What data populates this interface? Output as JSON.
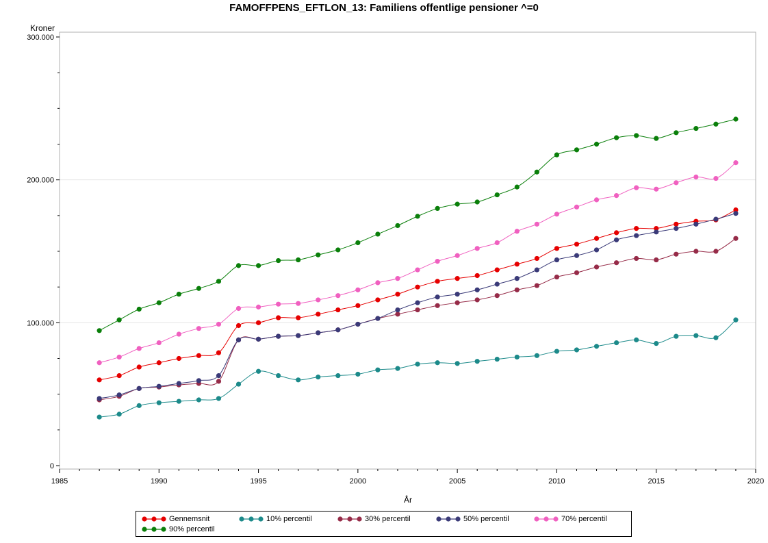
{
  "chart_data": {
    "type": "line",
    "title": "FAMOFFPENS_EFTLON_13: Familiens offentlige pensioner ^=0",
    "xlabel": "År",
    "ylabel": "Kroner",
    "xlim": [
      1985,
      2020
    ],
    "ylim": [
      0,
      300000
    ],
    "x_ticks": [
      1985,
      1990,
      1995,
      2000,
      2005,
      2010,
      2015,
      2020
    ],
    "x_tick_labels": [
      "1985",
      "1990",
      "1995",
      "2000",
      "2005",
      "2010",
      "2015",
      "2020"
    ],
    "y_ticks": [
      0,
      100000,
      200000,
      300000
    ],
    "y_tick_labels": [
      "0",
      "100.000",
      "200.000",
      "300.000"
    ],
    "grid": "horizontal",
    "legend_position": "bottom",
    "x": [
      1987,
      1988,
      1989,
      1990,
      1991,
      1992,
      1993,
      1994,
      1995,
      1996,
      1997,
      1998,
      1999,
      2000,
      2001,
      2002,
      2003,
      2004,
      2005,
      2006,
      2007,
      2008,
      2009,
      2010,
      2011,
      2012,
      2013,
      2014,
      2015,
      2016,
      2017,
      2018,
      2019
    ],
    "series": [
      {
        "name": "Gennemsnit",
        "color": "#e60000",
        "values": [
          60000,
          63000,
          69000,
          72000,
          75000,
          77000,
          79000,
          98000,
          100000,
          103500,
          103500,
          106000,
          109000,
          112000,
          116000,
          120000,
          125000,
          129000,
          131000,
          133000,
          137000,
          141000,
          145000,
          152000,
          155000,
          159000,
          163000,
          166000,
          166000,
          169000,
          171000,
          172000,
          179000
        ]
      },
      {
        "name": "10% percentil",
        "color": "#1c8a8a",
        "values": [
          34000,
          36000,
          42000,
          44000,
          45000,
          46000,
          47000,
          57000,
          66000,
          63000,
          60000,
          62000,
          63000,
          64000,
          67000,
          68000,
          71000,
          72000,
          71500,
          73000,
          74500,
          76000,
          77000,
          80000,
          81000,
          83500,
          86000,
          88000,
          85500,
          90500,
          91000,
          89500,
          102000
        ]
      },
      {
        "name": "30% percentil",
        "color": "#962b48",
        "values": [
          46000,
          48500,
          54000,
          55000,
          56500,
          57500,
          59000,
          88000,
          88500,
          90500,
          91000,
          93000,
          95000,
          99000,
          103000,
          106000,
          109000,
          112000,
          114000,
          116000,
          119000,
          123000,
          126000,
          132000,
          135000,
          139000,
          142000,
          145000,
          144000,
          148000,
          150000,
          150000,
          159000
        ]
      },
      {
        "name": "50% percentil",
        "color": "#3a3a78",
        "values": [
          47000,
          49500,
          54000,
          55500,
          57500,
          59500,
          63000,
          88000,
          88500,
          90500,
          91000,
          93000,
          95000,
          99000,
          103000,
          109000,
          114000,
          118000,
          120000,
          123000,
          127000,
          131000,
          137000,
          144000,
          147000,
          151000,
          158000,
          161000,
          163500,
          166000,
          169000,
          172500,
          176500
        ]
      },
      {
        "name": "70% percentil",
        "color": "#f060c0",
        "values": [
          72000,
          76000,
          82000,
          86000,
          92000,
          96000,
          99000,
          110000,
          111000,
          113000,
          113500,
          116000,
          119000,
          123000,
          128000,
          131000,
          137000,
          143000,
          147000,
          152000,
          156000,
          164000,
          169000,
          176000,
          181000,
          186000,
          189000,
          194500,
          193500,
          198000,
          202000,
          201000,
          212000
        ]
      },
      {
        "name": "90% percentil",
        "color": "#0a7f0a",
        "values": [
          94500,
          102000,
          109500,
          114000,
          120000,
          124000,
          129000,
          140000,
          140000,
          143500,
          144000,
          147500,
          151000,
          156000,
          162000,
          168000,
          174500,
          180000,
          183000,
          184500,
          189500,
          195000,
          205500,
          217500,
          221000,
          225000,
          229500,
          231000,
          229000,
          233000,
          236000,
          239000,
          242500
        ]
      }
    ]
  }
}
